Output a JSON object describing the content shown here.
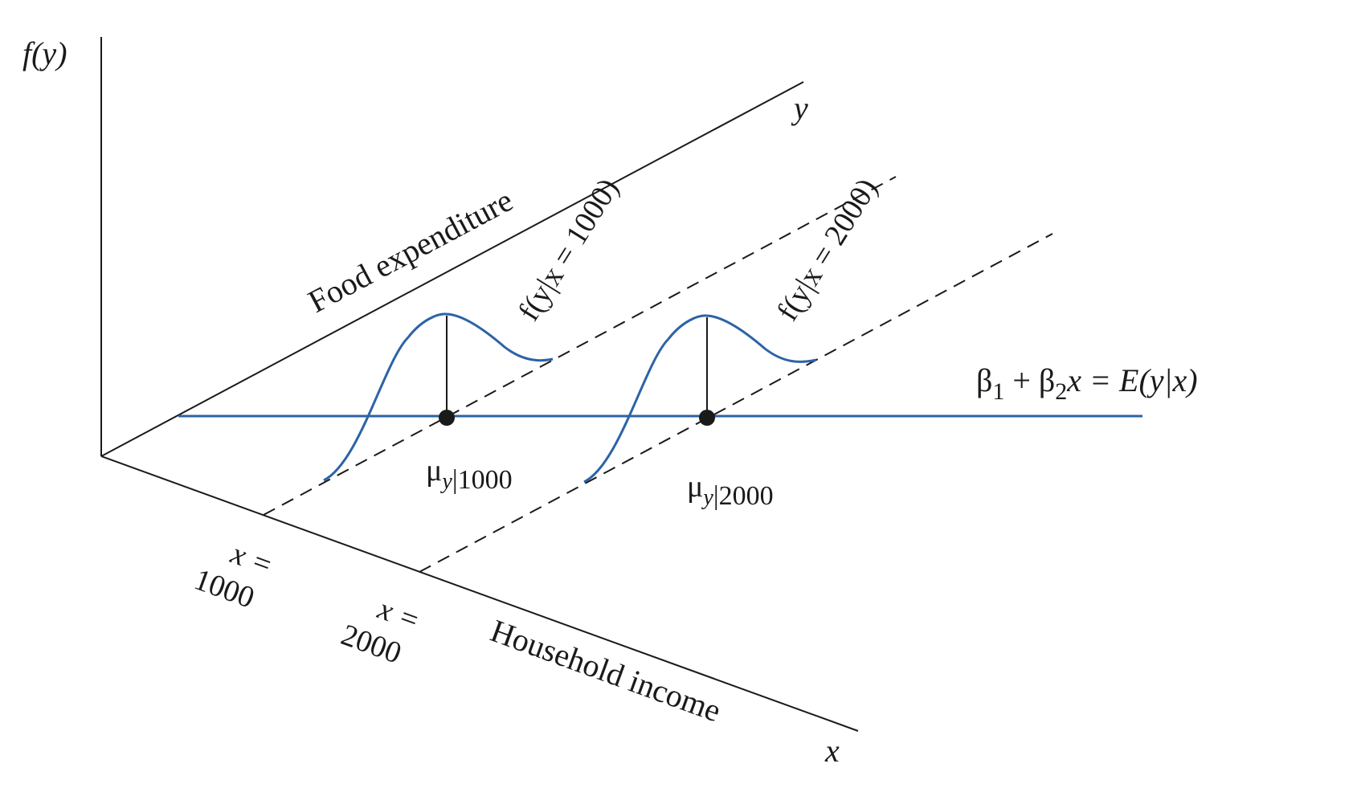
{
  "diagram": {
    "colors": {
      "curve": "#2c63a6",
      "axis": "#1a1a1a"
    },
    "axes": {
      "fy_label": "f(y)",
      "y_label": "y",
      "x_label": "x",
      "y_axis_title": "Food expenditure",
      "x_axis_title": "Household income"
    },
    "ticks": [
      {
        "line1": "x =",
        "line2": "1000"
      },
      {
        "line1": "x =",
        "line2": "2000"
      }
    ],
    "densities": [
      {
        "label": "f(y|x = 1000)",
        "mean_symbol": "μ",
        "mean_sub": "y",
        "mean_cond": "|1000"
      },
      {
        "label": "f(y|x = 2000)",
        "mean_symbol": "μ",
        "mean_sub": "y",
        "mean_cond": "|2000"
      }
    ],
    "regression": {
      "b1": "β",
      "b1_sub": "1",
      "plus": " + ",
      "b2": "β",
      "b2_sub": "2",
      "eq": "x = E(y|x)"
    }
  }
}
